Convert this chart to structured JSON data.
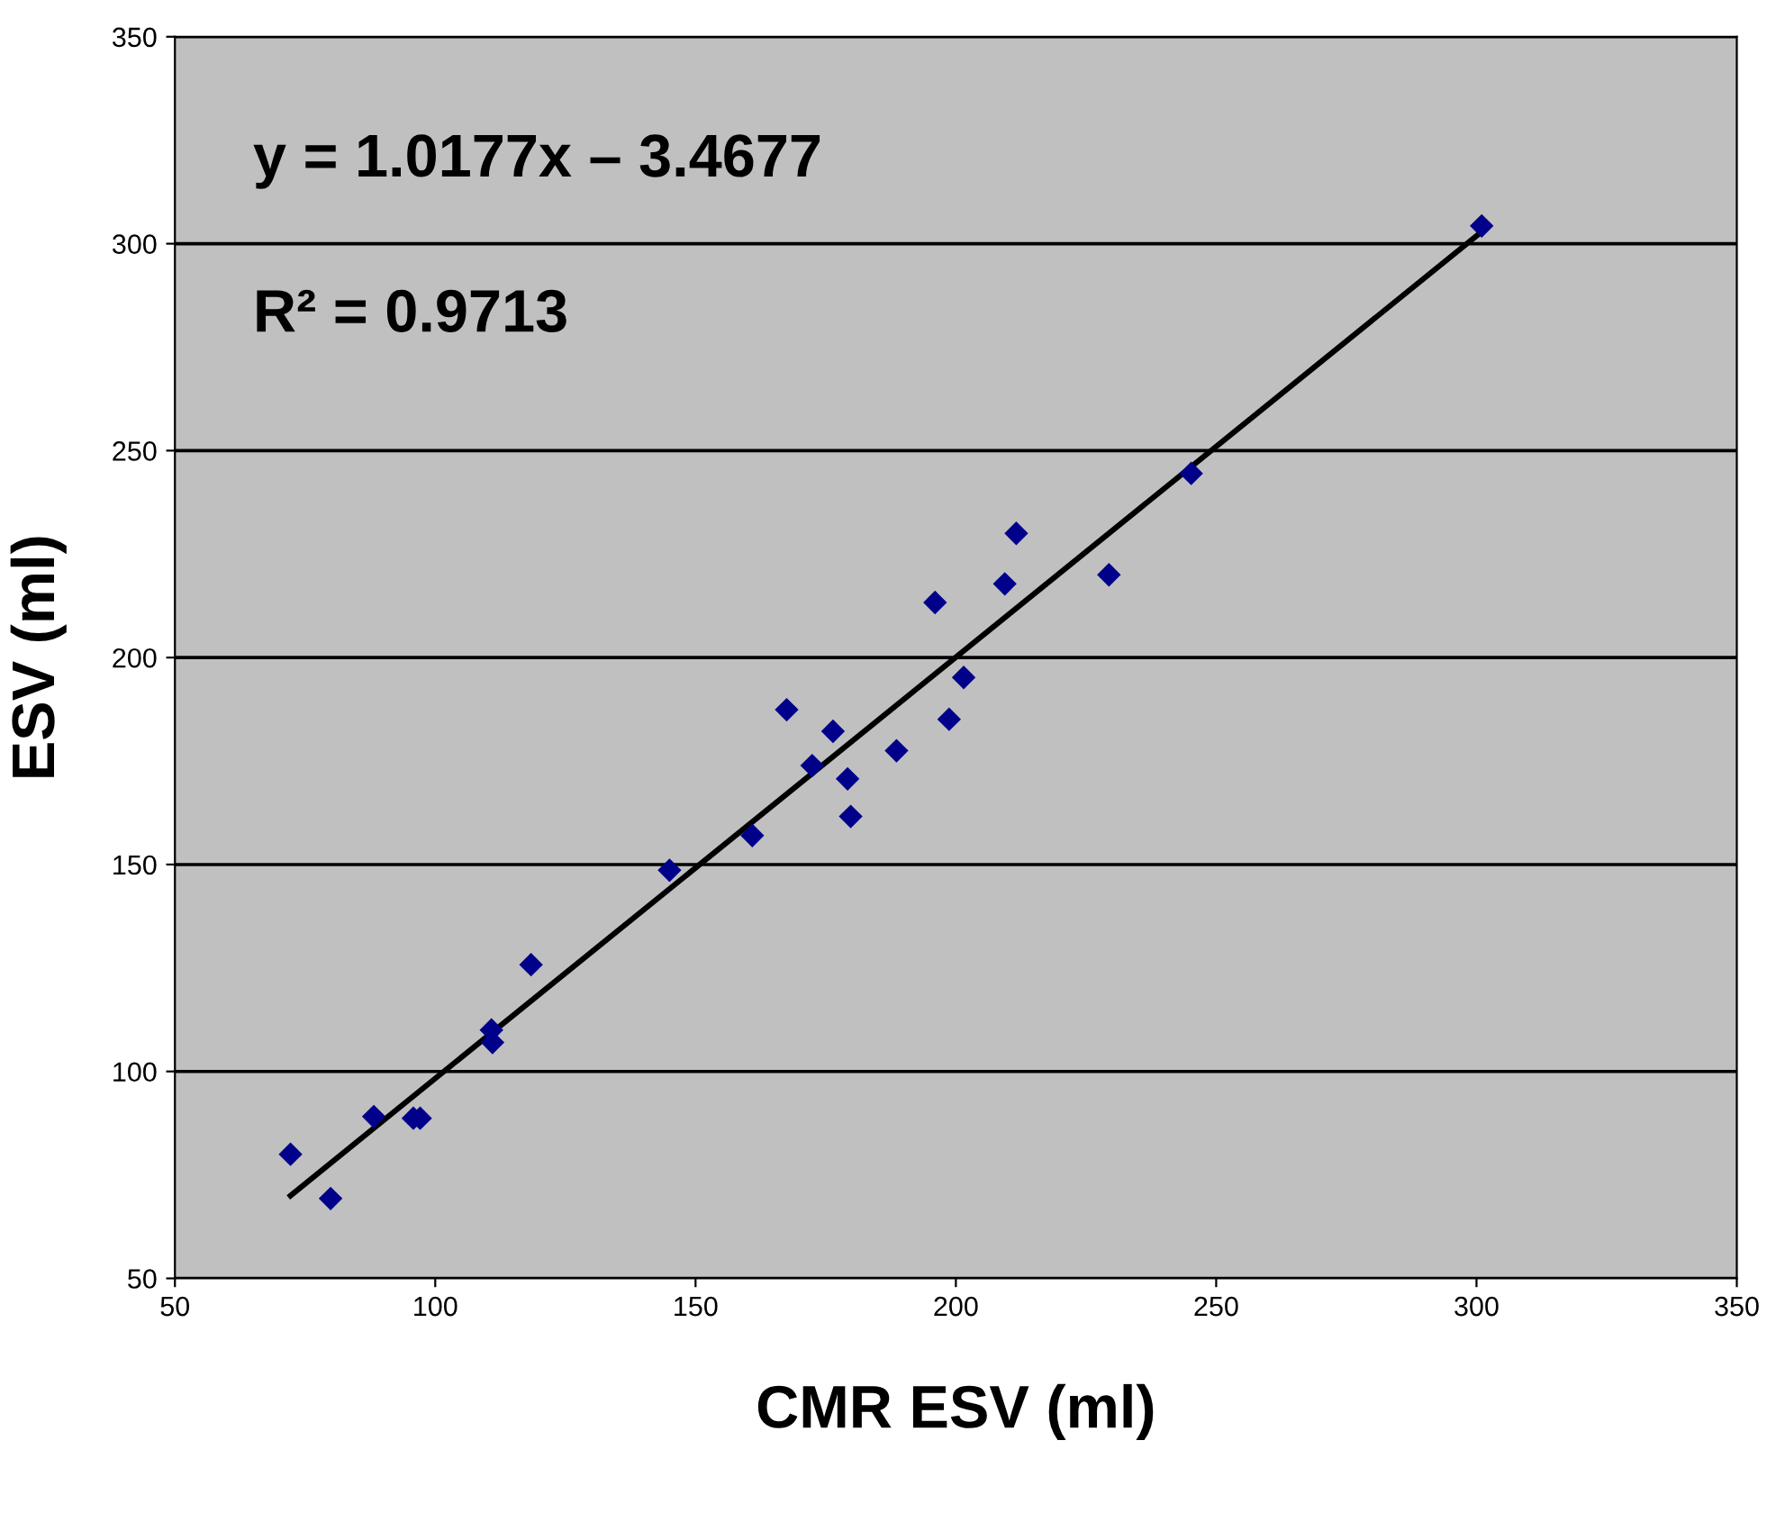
{
  "chart_data": {
    "type": "scatter",
    "xlabel": "CMR ESV (ml)",
    "ylabel": "ESV (ml)",
    "annotations": [
      "y = 1.0177x – 3.4677",
      "R² = 0.9713"
    ],
    "xlim": [
      50,
      350
    ],
    "xticks": [
      50,
      100,
      150,
      200,
      250,
      300,
      350
    ],
    "ylim": [
      50,
      350
    ],
    "yticks": [
      50,
      100,
      150,
      200,
      250,
      300,
      350
    ],
    "grid": "y",
    "marker": "diamond",
    "series": [
      {
        "color": "#00008b",
        "x": [
          72.2,
          79.9,
          88.2,
          95.8,
          97.1,
          110.8,
          111.0,
          118.4,
          145.0,
          160.9,
          167.5,
          172.4,
          176.4,
          179.2,
          179.8,
          188.6,
          196.0,
          198.7,
          201.5,
          209.4,
          211.6,
          229.4,
          245.2,
          301.0
        ],
        "values": [
          80,
          69.3,
          89.1,
          88.7,
          88.7,
          110,
          107,
          125.8,
          148.6,
          157,
          187.4,
          173.9,
          182.2,
          170.7,
          161.6,
          177.5,
          213.3,
          185.1,
          195.2,
          217.8,
          230,
          220,
          244.5,
          304.3
        ]
      },
      {
        "type": "line",
        "color": "#000000",
        "marker": "none",
        "x": [
          72.2,
          301.0
        ],
        "values": [
          70.0,
          302.9
        ]
      }
    ]
  }
}
